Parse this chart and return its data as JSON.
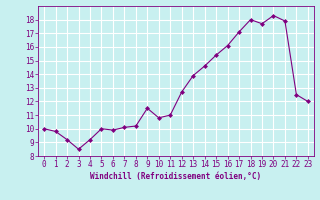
{
  "full_x": [
    0,
    1,
    2,
    3,
    4,
    5,
    6,
    7,
    8,
    9,
    10,
    11,
    12,
    13,
    14,
    15,
    16,
    17,
    18,
    19,
    20,
    21,
    22,
    23
  ],
  "full_y": [
    10.0,
    9.8,
    9.2,
    8.5,
    9.2,
    10.0,
    9.9,
    10.1,
    10.2,
    11.5,
    10.8,
    11.0,
    12.7,
    13.9,
    14.6,
    15.4,
    16.1,
    17.1,
    18.0,
    17.7,
    18.3,
    17.9,
    12.5,
    12.0
  ],
  "line_color": "#800080",
  "marker": "D",
  "marker_size": 2,
  "bg_color": "#c8f0f0",
  "grid_color": "#ffffff",
  "xlabel": "Windchill (Refroidissement éolien,°C)",
  "xlim": [
    -0.5,
    23.5
  ],
  "ylim": [
    8,
    19
  ],
  "yticks": [
    8,
    9,
    10,
    11,
    12,
    13,
    14,
    15,
    16,
    17,
    18
  ],
  "xticks": [
    0,
    1,
    2,
    3,
    4,
    5,
    6,
    7,
    8,
    9,
    10,
    11,
    12,
    13,
    14,
    15,
    16,
    17,
    18,
    19,
    20,
    21,
    22,
    23
  ],
  "label_fontsize": 5.5,
  "tick_fontsize": 5.5
}
